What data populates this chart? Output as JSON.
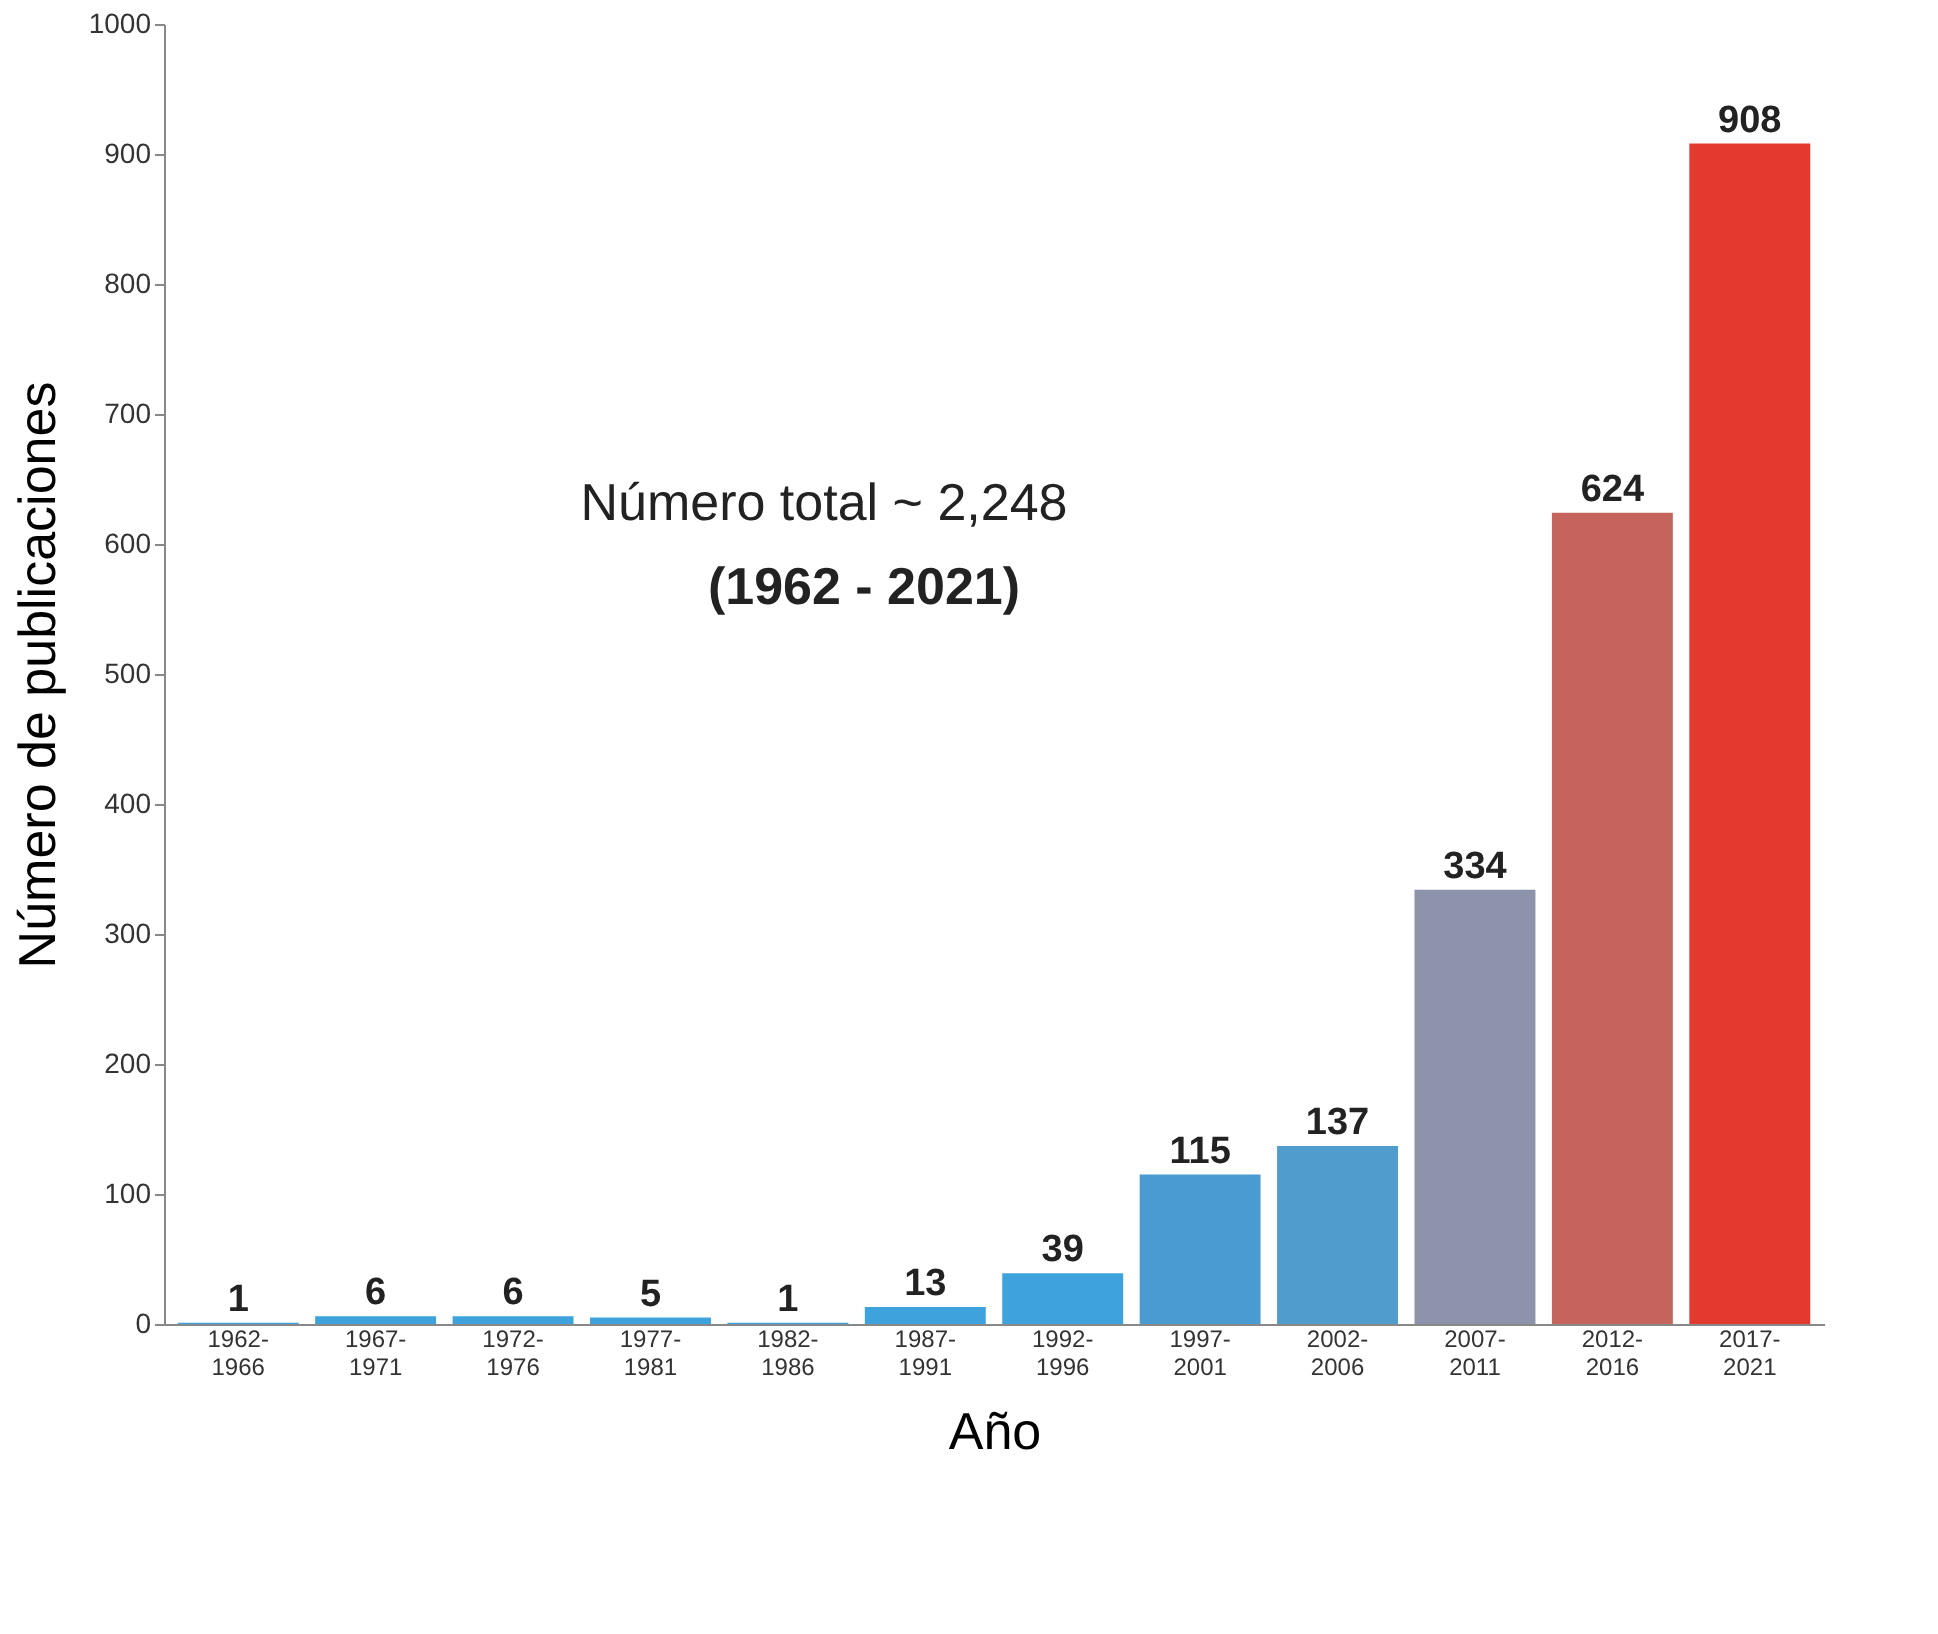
{
  "chart_data": {
    "type": "bar",
    "xlabel": "Año",
    "ylabel": "Número de publicaciones",
    "categories": [
      "1962-\n1966",
      "1967-\n1971",
      "1972-\n1976",
      "1977-\n1981",
      "1982-\n1986",
      "1987-\n1991",
      "1992-\n1996",
      "1997-\n2001",
      "2002-\n2006",
      "2007-\n2011",
      "2012-\n2016",
      "2017-\n2021"
    ],
    "values": [
      1,
      6,
      6,
      5,
      1,
      13,
      39,
      115,
      137,
      334,
      624,
      908
    ],
    "colors": [
      "#3ea3dc",
      "#3ea3dc",
      "#3ea3dc",
      "#3ea3dc",
      "#3ea3dc",
      "#3ea3dc",
      "#3ea3dc",
      "#4a9cd0",
      "#4f9ccd",
      "#8c93aa",
      "#c5645c",
      "#e33a30"
    ],
    "data_labels": true,
    "ylim": [
      0,
      1000
    ],
    "yticks": [
      0,
      100,
      200,
      300,
      400,
      500,
      600,
      700,
      800,
      900,
      1000
    ],
    "grid": false,
    "annotations": [
      "Número total ~ 2,248",
      "(1962 - 2021)"
    ]
  }
}
